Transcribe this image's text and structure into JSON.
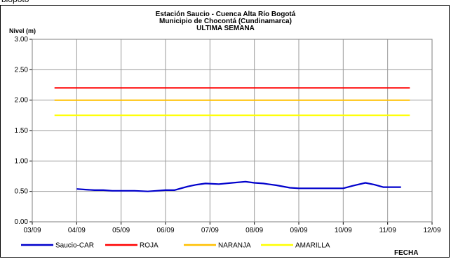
{
  "clipped_top_text": "blopoto",
  "chart_data": {
    "type": "line",
    "title": "Estación Saucio - Cuenca Alta Río Bogotá",
    "subtitle": "Municipio de Chocontá (Cundinamarca)",
    "subtitle2": "ULTIMA SEMANA",
    "ylabel": "Nivel (m)",
    "xlabel": "FECHA",
    "ylim": [
      0,
      3.0
    ],
    "yticks": [
      "0.00",
      "0.50",
      "1.00",
      "1.50",
      "2.00",
      "2.50",
      "3.00"
    ],
    "xlim": [
      0,
      9
    ],
    "xticks": [
      "03/09",
      "04/09",
      "05/09",
      "06/09",
      "07/09",
      "08/09",
      "09/09",
      "10/09",
      "11/09",
      "12/09"
    ],
    "grid": true,
    "legend_position": "bottom",
    "series": [
      {
        "name": "Saucio-CAR",
        "color": "#0000cc",
        "x": [
          1.0,
          1.2,
          1.4,
          1.6,
          1.8,
          2.0,
          2.3,
          2.6,
          2.8,
          3.0,
          3.2,
          3.5,
          3.7,
          3.9,
          4.2,
          4.5,
          4.8,
          5.0,
          5.2,
          5.5,
          5.8,
          6.0,
          6.3,
          6.5,
          6.7,
          7.0,
          7.2,
          7.5,
          7.7,
          7.9,
          8.1,
          8.3
        ],
        "y": [
          0.54,
          0.53,
          0.52,
          0.52,
          0.51,
          0.51,
          0.51,
          0.5,
          0.51,
          0.52,
          0.52,
          0.58,
          0.61,
          0.63,
          0.62,
          0.64,
          0.66,
          0.64,
          0.63,
          0.6,
          0.56,
          0.55,
          0.55,
          0.55,
          0.55,
          0.55,
          0.59,
          0.64,
          0.61,
          0.57,
          0.57,
          0.57
        ]
      },
      {
        "name": "ROJA",
        "color": "#ff0000",
        "x": [
          0.5,
          8.5
        ],
        "y": [
          2.2,
          2.2
        ]
      },
      {
        "name": "NARANJA",
        "color": "#ffc000",
        "x": [
          0.5,
          8.5
        ],
        "y": [
          2.0,
          2.0
        ]
      },
      {
        "name": "AMARILLA",
        "color": "#ffff00",
        "x": [
          0.5,
          8.5
        ],
        "y": [
          1.75,
          1.75
        ]
      }
    ]
  }
}
